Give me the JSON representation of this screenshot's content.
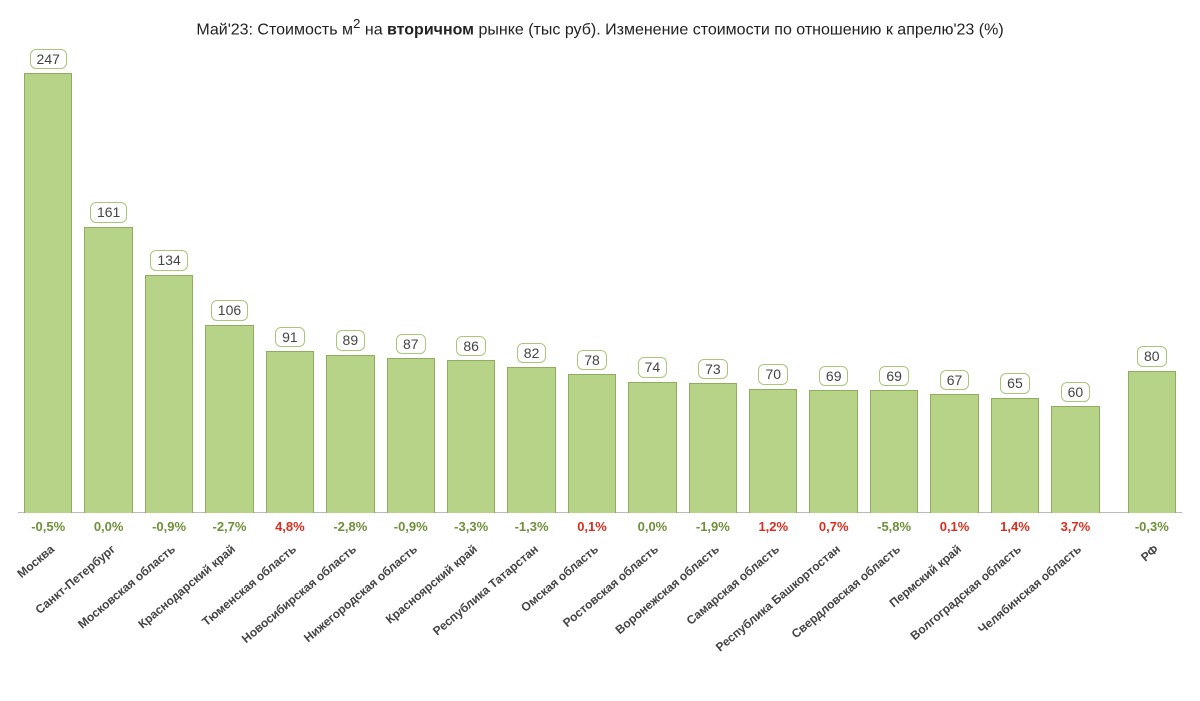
{
  "chart": {
    "title_parts": {
      "p1": "Май'23: Стоимость м",
      "sup": "2",
      "p2": " на ",
      "bold": "вторичном",
      "p3": " рынке (тыс руб). Изменение стоимости по отношению к апрелю'23 (%)"
    },
    "type": "bar",
    "y_max": 247,
    "bar_fill": "#b6d388",
    "bar_border": "#8fae5d",
    "pct_positive_color": "#d62f1f",
    "pct_nonpositive_color": "#6f8f3a",
    "badge_border": "#a8c878",
    "badge_text_color": "#444444",
    "label_color": "#444444",
    "background_color": "#ffffff",
    "value_fontsize": 14,
    "pct_fontsize": 13,
    "label_fontsize": 12,
    "title_fontsize": 16,
    "categories": [
      {
        "label": "Москва",
        "value": 247,
        "pct": "-0,5%",
        "positive": false
      },
      {
        "label": "Санкт-Петербург",
        "value": 161,
        "pct": "0,0%",
        "positive": false
      },
      {
        "label": "Московская область",
        "value": 134,
        "pct": "-0,9%",
        "positive": false
      },
      {
        "label": "Краснодарский край",
        "value": 106,
        "pct": "-2,7%",
        "positive": false
      },
      {
        "label": "Тюменская область",
        "value": 91,
        "pct": "4,8%",
        "positive": true
      },
      {
        "label": "Новосибирская область",
        "value": 89,
        "pct": "-2,8%",
        "positive": false
      },
      {
        "label": "Нижегородская область",
        "value": 87,
        "pct": "-0,9%",
        "positive": false
      },
      {
        "label": "Красноярский край",
        "value": 86,
        "pct": "-3,3%",
        "positive": false
      },
      {
        "label": "Республика Татарстан",
        "value": 82,
        "pct": "-1,3%",
        "positive": false
      },
      {
        "label": "Омская область",
        "value": 78,
        "pct": "0,1%",
        "positive": true
      },
      {
        "label": "Ростовская область",
        "value": 74,
        "pct": "0,0%",
        "positive": false
      },
      {
        "label": "Воронежская область",
        "value": 73,
        "pct": "-1,9%",
        "positive": false
      },
      {
        "label": "Самарская область",
        "value": 70,
        "pct": "1,2%",
        "positive": true
      },
      {
        "label": "Республика Башкортостан",
        "value": 69,
        "pct": "0,7%",
        "positive": true
      },
      {
        "label": "Свердловская область",
        "value": 69,
        "pct": "-5,8%",
        "positive": false
      },
      {
        "label": "Пермский край",
        "value": 67,
        "pct": "0,1%",
        "positive": true
      },
      {
        "label": "Волгоградская область",
        "value": 65,
        "pct": "1,4%",
        "positive": true
      },
      {
        "label": "Челябинская область",
        "value": 60,
        "pct": "3,7%",
        "positive": true
      },
      {
        "label": "РФ",
        "value": 80,
        "pct": "-0,3%",
        "positive": false,
        "gap_before": true
      }
    ]
  }
}
